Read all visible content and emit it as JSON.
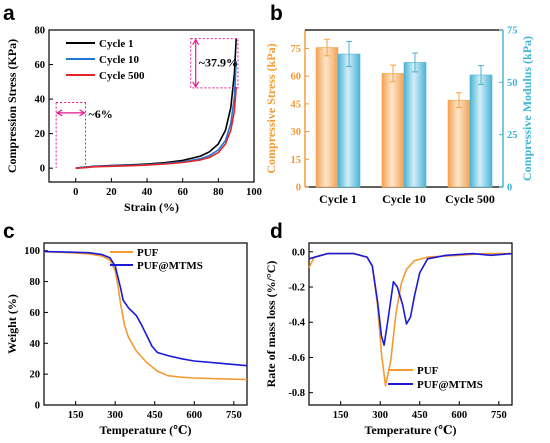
{
  "panels": {
    "a": {
      "letter": "a"
    },
    "b": {
      "letter": "b"
    },
    "c": {
      "letter": "c"
    },
    "d": {
      "letter": "d"
    }
  },
  "chart_data": [
    {
      "id": "a",
      "type": "line",
      "xlabel": "Strain (%)",
      "ylabel": "Compression Stress (KPa)",
      "xlim": [
        -15,
        100
      ],
      "ylim": [
        -8,
        80
      ],
      "xticks": [
        0,
        20,
        40,
        60,
        80,
        100
      ],
      "yticks": [
        0,
        20,
        40,
        60,
        80
      ],
      "legend_position": "top-left",
      "annotations": [
        {
          "text": "~37.9%",
          "x": 77.5,
          "y": 60
        },
        {
          "text": "~6%",
          "x": 2,
          "y": 30
        }
      ],
      "series": [
        {
          "name": "Cycle 1",
          "color": "#000000",
          "points": [
            [
              0,
              0
            ],
            [
              10,
              1.1
            ],
            [
              20,
              1.5
            ],
            [
              30,
              1.9
            ],
            [
              40,
              2.4
            ],
            [
              50,
              3.2
            ],
            [
              60,
              4.5
            ],
            [
              70,
              7
            ],
            [
              75,
              9.5
            ],
            [
              80,
              14
            ],
            [
              84,
              22
            ],
            [
              87,
              35
            ],
            [
              89,
              55
            ],
            [
              90,
              75
            ]
          ]
        },
        {
          "name": "Cycle 10",
          "color": "#1f77d4",
          "points": [
            [
              0,
              0
            ],
            [
              3,
              0.5
            ],
            [
              10,
              1
            ],
            [
              20,
              1.3
            ],
            [
              30,
              1.6
            ],
            [
              40,
              2
            ],
            [
              50,
              2.7
            ],
            [
              60,
              3.7
            ],
            [
              70,
              5.5
            ],
            [
              75,
              7.3
            ],
            [
              80,
              10.5
            ],
            [
              84,
              16
            ],
            [
              87,
              26
            ],
            [
              89,
              41
            ],
            [
              90,
              62
            ]
          ]
        },
        {
          "name": "Cycle 500",
          "color": "#e0262b",
          "points": [
            [
              0,
              0
            ],
            [
              5,
              0.3
            ],
            [
              10,
              0.8
            ],
            [
              20,
              1.1
            ],
            [
              30,
              1.4
            ],
            [
              40,
              1.8
            ],
            [
              50,
              2.4
            ],
            [
              60,
              3.3
            ],
            [
              70,
              4.8
            ],
            [
              75,
              6.2
            ],
            [
              80,
              9
            ],
            [
              84,
              14
            ],
            [
              87,
              22
            ],
            [
              89,
              33
            ],
            [
              90,
              47
            ]
          ]
        }
      ]
    },
    {
      "id": "b",
      "type": "bar",
      "categories": [
        "Cycle 1",
        "Cycle 10",
        "Cycle 500"
      ],
      "ylabel": "Compressive Stress (kPa)",
      "y2label": "Compressive Modulus (kPa)",
      "ylim": [
        0,
        85
      ],
      "y2lim": [
        0,
        75
      ],
      "yticks": [
        0,
        15,
        30,
        45,
        60,
        75
      ],
      "y2ticks": [
        0,
        25,
        50,
        75
      ],
      "series": [
        {
          "axis": "left",
          "color": "#f5a142",
          "values": [
            75.5,
            61.5,
            47
          ],
          "errors": [
            4.5,
            4.5,
            4
          ]
        },
        {
          "axis": "right",
          "color": "#4db5d6",
          "values": [
            63.5,
            59.5,
            53.5
          ],
          "errors": [
            6,
            4.5,
            4.5
          ]
        }
      ]
    },
    {
      "id": "c",
      "type": "line",
      "xlabel": "Temperature (℃)",
      "ylabel": "Weight (%)",
      "xlim": [
        30,
        800
      ],
      "ylim": [
        0,
        105
      ],
      "xticks": [
        150,
        300,
        450,
        600,
        750
      ],
      "yticks": [
        0,
        20,
        40,
        60,
        80,
        100
      ],
      "legend_position": "top-right",
      "series": [
        {
          "name": "PUF",
          "color": "#f39a32",
          "points": [
            [
              30,
              99.3
            ],
            [
              100,
              99
            ],
            [
              200,
              98
            ],
            [
              250,
              96.5
            ],
            [
              280,
              94
            ],
            [
              300,
              87
            ],
            [
              310,
              78
            ],
            [
              320,
              66
            ],
            [
              335,
              52
            ],
            [
              350,
              44
            ],
            [
              380,
              35
            ],
            [
              420,
              27.5
            ],
            [
              460,
              22
            ],
            [
              500,
              19
            ],
            [
              550,
              18
            ],
            [
              600,
              17.5
            ],
            [
              700,
              17
            ],
            [
              800,
              16.5
            ]
          ]
        },
        {
          "name": "PUF@MTMS",
          "color": "#1a1ad8",
          "points": [
            [
              30,
              99.5
            ],
            [
              100,
              99.2
            ],
            [
              200,
              98.7
            ],
            [
              250,
              97.5
            ],
            [
              280,
              95.5
            ],
            [
              300,
              90
            ],
            [
              320,
              76
            ],
            [
              330,
              68
            ],
            [
              350,
              63
            ],
            [
              380,
              58
            ],
            [
              400,
              52
            ],
            [
              420,
              45
            ],
            [
              440,
              38
            ],
            [
              460,
              34
            ],
            [
              500,
              32
            ],
            [
              550,
              30
            ],
            [
              600,
              28.5
            ],
            [
              700,
              27
            ],
            [
              800,
              25.5
            ]
          ]
        }
      ]
    },
    {
      "id": "d",
      "type": "line",
      "xlabel": "Temperature (℃)",
      "ylabel": "Rate of mass loss (%/°C)",
      "xlim": [
        30,
        800
      ],
      "ylim": [
        -0.87,
        0.05
      ],
      "xticks": [
        150,
        300,
        450,
        600,
        750
      ],
      "yticks": [
        0.0,
        -0.2,
        -0.4,
        -0.6,
        -0.8
      ],
      "legend_position": "bottom-right",
      "series": [
        {
          "name": "PUF",
          "color": "#f39a32",
          "points": [
            [
              30,
              -0.09
            ],
            [
              50,
              -0.03
            ],
            [
              100,
              -0.01
            ],
            [
              200,
              -0.01
            ],
            [
              250,
              -0.03
            ],
            [
              270,
              -0.08
            ],
            [
              290,
              -0.3
            ],
            [
              305,
              -0.58
            ],
            [
              320,
              -0.76
            ],
            [
              340,
              -0.62
            ],
            [
              360,
              -0.35
            ],
            [
              380,
              -0.18
            ],
            [
              400,
              -0.1
            ],
            [
              430,
              -0.05
            ],
            [
              480,
              -0.03
            ],
            [
              600,
              -0.02
            ],
            [
              700,
              -0.01
            ],
            [
              800,
              -0.01
            ]
          ]
        },
        {
          "name": "PUF@MTMS",
          "color": "#1a1ad8",
          "points": [
            [
              30,
              -0.04
            ],
            [
              100,
              -0.01
            ],
            [
              200,
              -0.01
            ],
            [
              250,
              -0.03
            ],
            [
              270,
              -0.08
            ],
            [
              290,
              -0.28
            ],
            [
              305,
              -0.48
            ],
            [
              315,
              -0.53
            ],
            [
              330,
              -0.38
            ],
            [
              350,
              -0.17
            ],
            [
              365,
              -0.2
            ],
            [
              385,
              -0.3
            ],
            [
              400,
              -0.41
            ],
            [
              415,
              -0.37
            ],
            [
              430,
              -0.25
            ],
            [
              450,
              -0.12
            ],
            [
              480,
              -0.04
            ],
            [
              550,
              -0.02
            ],
            [
              650,
              -0.01
            ],
            [
              720,
              -0.02
            ],
            [
              800,
              -0.01
            ]
          ]
        }
      ]
    }
  ]
}
